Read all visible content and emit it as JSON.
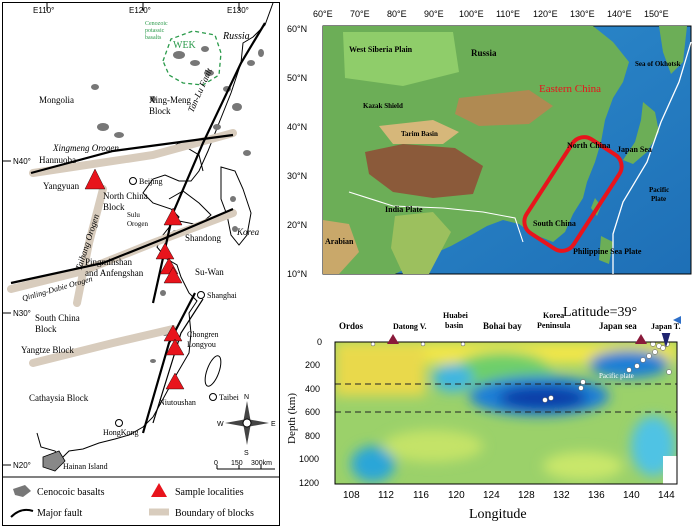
{
  "left_map": {
    "top_ticks": [
      "E110°",
      "E120°",
      "E130°"
    ],
    "left_ticks": [
      "N40°",
      "N30°",
      "N20°"
    ],
    "regions": {
      "russia": "Russia",
      "mongolia": "Mongolia",
      "xing_meng": "Xing-Meng\nBlock",
      "xingmeng_orogen": "Xingmeng Orogen",
      "north_china": "North China\nBlock",
      "south_china": "South China\nBlock",
      "yangtze": "Yangtze Block",
      "cathaysia": "Cathaysia Block",
      "korea": "Korea",
      "taihang": "Taihang Orogen",
      "qinling": "Qinling-Dabie Orogen",
      "tanlu": "Tan-Lu Fault",
      "sulu": "Sulu\nOrogen",
      "hainan": "Hainan Island",
      "wek": "WEK",
      "cenozoic_note": "Cenozoic\npotassic\nbasalts"
    },
    "localities": [
      {
        "name": "Hannuoba"
      },
      {
        "name": "Yangyuan"
      },
      {
        "name": "Shandong"
      },
      {
        "name": "Pingminshan\nand Anfengshan"
      },
      {
        "name": "Su-Wan"
      },
      {
        "name": "Chongren\nLongyou"
      },
      {
        "name": "Niutoushan"
      }
    ],
    "cities": [
      "Beijing",
      "Shanghai",
      "Taibei",
      "HongKong"
    ],
    "compass": {
      "n": "N",
      "s": "S",
      "e": "E",
      "w": "W"
    },
    "scale": {
      "ticks": [
        "0",
        "150",
        "300km"
      ]
    }
  },
  "legend": {
    "basalts": "Cenocoic basalts",
    "samples": "Sample localities",
    "fault": "Major fault",
    "boundary": "Boundary of blocks"
  },
  "relief_map": {
    "lon_ticks": [
      "60°E",
      "70°E",
      "80°E",
      "90°E",
      "100°E",
      "110°E",
      "120°E",
      "130°E",
      "140°E",
      "150°E"
    ],
    "lat_ticks": [
      "60°N",
      "50°N",
      "40°N",
      "30°N",
      "20°N",
      "10°N"
    ],
    "labels": {
      "west_siberia": "West Siberia Plain",
      "russia": "Russia",
      "okhotsk": "Sea of Okhotsk",
      "eastern_china": "Eastern China",
      "kazak": "Kazak Shield",
      "tarim": "Tarim Basin",
      "north_china": "North China",
      "japan_sea": "Japan Sea",
      "india": "India Plate",
      "south_china": "South China",
      "pacific": "Pacific\nPlate",
      "arabian": "Arabian",
      "philippine": "Philippine Sea Plate"
    },
    "colors": {
      "highlight": "#e8141c"
    }
  },
  "section": {
    "title": "Latitude=39°",
    "regions": [
      "Ordos",
      "Datong V.",
      "Huabei\nbasin",
      "Bohai bay",
      "Korea\nPeninsula",
      "Japan sea",
      "Japan T."
    ],
    "x_ticks": [
      "108",
      "112",
      "116",
      "120",
      "124",
      "128",
      "132",
      "136",
      "140",
      "144"
    ],
    "y_ticks": [
      "0",
      "200",
      "400",
      "600",
      "800",
      "1000",
      "1200"
    ],
    "xlabel": "Longitude",
    "ylabel": "Depth (km)",
    "slab_label": "Pacific plate"
  },
  "chart_data": {
    "type": "heatmap",
    "title": "Latitude=39°",
    "xlabel": "Longitude",
    "ylabel": "Depth (km)",
    "xlim": [
      106,
      145
    ],
    "ylim": [
      1200,
      0
    ],
    "x_ticks": [
      108,
      112,
      116,
      120,
      124,
      128,
      132,
      136,
      140,
      144
    ],
    "y_ticks": [
      0,
      200,
      400,
      600,
      800,
      1000,
      1200
    ],
    "dashed_depths": [
      410,
      660
    ],
    "volcano_longitudes": [
      113,
      140
    ],
    "trench_longitude": 143.5
  }
}
